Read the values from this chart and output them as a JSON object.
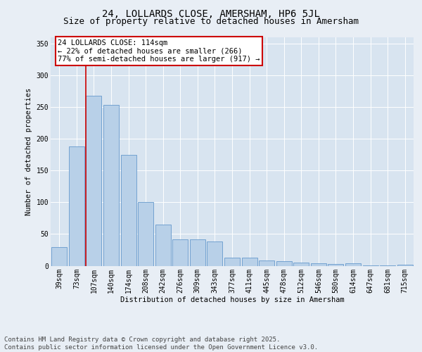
{
  "title": "24, LOLLARDS CLOSE, AMERSHAM, HP6 5JL",
  "subtitle": "Size of property relative to detached houses in Amersham",
  "xlabel": "Distribution of detached houses by size in Amersham",
  "ylabel": "Number of detached properties",
  "categories": [
    "39sqm",
    "73sqm",
    "107sqm",
    "140sqm",
    "174sqm",
    "208sqm",
    "242sqm",
    "276sqm",
    "309sqm",
    "343sqm",
    "377sqm",
    "411sqm",
    "445sqm",
    "478sqm",
    "512sqm",
    "546sqm",
    "580sqm",
    "614sqm",
    "647sqm",
    "681sqm",
    "715sqm"
  ],
  "values": [
    29,
    188,
    268,
    253,
    174,
    100,
    65,
    42,
    41,
    38,
    13,
    13,
    8,
    7,
    5,
    4,
    3,
    4,
    1,
    1,
    2
  ],
  "bar_color": "#b8d0e8",
  "bar_edge_color": "#6699cc",
  "ylim": [
    0,
    360
  ],
  "yticks": [
    0,
    50,
    100,
    150,
    200,
    250,
    300,
    350
  ],
  "vline_x_index": 2,
  "annotation_line1": "24 LOLLARDS CLOSE: 114sqm",
  "annotation_line2": "← 22% of detached houses are smaller (266)",
  "annotation_line3": "77% of semi-detached houses are larger (917) →",
  "annotation_box_color": "#ffffff",
  "annotation_box_edge": "#cc0000",
  "vline_color": "#cc0000",
  "bg_color": "#e8eef5",
  "plot_bg_color": "#d8e4f0",
  "footer_line1": "Contains HM Land Registry data © Crown copyright and database right 2025.",
  "footer_line2": "Contains public sector information licensed under the Open Government Licence v3.0.",
  "title_fontsize": 10,
  "subtitle_fontsize": 9,
  "annotation_fontsize": 7.5,
  "axis_label_fontsize": 7.5,
  "tick_fontsize": 7,
  "footer_fontsize": 6.5,
  "ylabel_fontsize": 7.5
}
